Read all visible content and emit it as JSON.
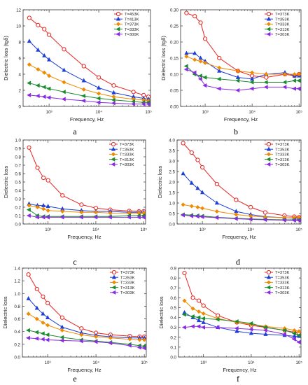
{
  "chart_data": [
    {
      "type": "line",
      "panel_label": "a",
      "xlabel": "Frequency, Hz",
      "ylabel": "Dielectric loss (tgδ)",
      "x_scale": "log",
      "xlim": [
        300,
        110000
      ],
      "ylim": [
        0,
        12
      ],
      "yticks": [
        0,
        2,
        4,
        6,
        8,
        10,
        12
      ],
      "ytick_labels": [
        "0",
        "2",
        "4",
        "6",
        "8",
        "10",
        "12"
      ],
      "xticks": [
        1000,
        10000,
        100000
      ],
      "xtick_labels": [
        "10³",
        "10⁴",
        "10⁵"
      ],
      "legend_position": "top-right",
      "x": [
        400,
        600,
        800,
        1000,
        2000,
        5000,
        10000,
        20000,
        50000,
        80000,
        100000
      ],
      "series": [
        {
          "name": "T=453K",
          "color": "#e8231f",
          "marker": "circle",
          "values": [
            11.0,
            10.1,
            9.6,
            8.9,
            7.1,
            5.0,
            3.6,
            2.6,
            1.8,
            1.4,
            1.2
          ]
        },
        {
          "name": "T=413K",
          "color": "#1f3fd6",
          "marker": "triangle",
          "values": [
            8.1,
            7.0,
            6.3,
            5.8,
            4.5,
            3.2,
            2.3,
            1.7,
            1.2,
            1.0,
            0.9
          ]
        },
        {
          "name": "T=373K",
          "color": "#f08a00",
          "marker": "diamond",
          "values": [
            5.2,
            4.6,
            4.2,
            3.8,
            3.0,
            2.1,
            1.6,
            1.2,
            0.9,
            0.8,
            0.7
          ]
        },
        {
          "name": "T=333K",
          "color": "#1a8c2e",
          "marker": "triangle-left",
          "values": [
            2.9,
            2.6,
            2.4,
            2.2,
            1.8,
            1.3,
            1.0,
            0.8,
            0.6,
            0.5,
            0.5
          ]
        },
        {
          "name": "T=300K",
          "color": "#8a2be2",
          "marker": "triangle-left",
          "values": [
            1.4,
            1.3,
            1.2,
            1.1,
            0.9,
            0.7,
            0.5,
            0.4,
            0.3,
            0.3,
            0.3
          ]
        }
      ]
    },
    {
      "type": "line",
      "panel_label": "b",
      "xlabel": "Frequency, Hz",
      "ylabel": "Dielectric loss (tgδ)",
      "x_scale": "log",
      "xlim": [
        300,
        110000
      ],
      "ylim": [
        0.0,
        0.3
      ],
      "yticks": [
        0.0,
        0.05,
        0.1,
        0.15,
        0.2,
        0.25,
        0.3
      ],
      "ytick_labels": [
        "0.00",
        "0.05",
        "0.10",
        "0.15",
        "0.20",
        "0.25",
        "0.30"
      ],
      "xticks": [
        1000,
        10000,
        100000
      ],
      "xtick_labels": [
        "10³",
        "10⁴",
        "10⁵"
      ],
      "legend_position": "top-right",
      "x": [
        400,
        600,
        800,
        1000,
        2000,
        5000,
        10000,
        20000,
        50000,
        80000,
        100000
      ],
      "series": [
        {
          "name": "T=373K",
          "color": "#e8231f",
          "marker": "circle",
          "values": [
            0.29,
            0.28,
            0.26,
            0.21,
            0.15,
            0.11,
            0.095,
            0.09,
            0.1,
            0.095,
            0.1
          ]
        },
        {
          "name": "T=353K",
          "color": "#1f3fd6",
          "marker": "triangle",
          "values": [
            0.165,
            0.165,
            0.15,
            0.14,
            0.11,
            0.09,
            0.085,
            0.1,
            0.105,
            0.095,
            0.095
          ]
        },
        {
          "name": "T=333K",
          "color": "#f08a00",
          "marker": "diamond",
          "values": [
            0.155,
            0.145,
            0.14,
            0.135,
            0.12,
            0.11,
            0.105,
            0.1,
            0.1,
            0.1,
            0.1
          ]
        },
        {
          "name": "T=313K",
          "color": "#1a8c2e",
          "marker": "triangle-left",
          "values": [
            0.125,
            0.1,
            0.095,
            0.09,
            0.085,
            0.08,
            0.075,
            0.075,
            0.075,
            0.08,
            0.08
          ]
        },
        {
          "name": "T=303K",
          "color": "#8a2be2",
          "marker": "triangle-left",
          "values": [
            0.115,
            0.105,
            0.085,
            0.065,
            0.055,
            0.05,
            0.055,
            0.06,
            0.06,
            0.055,
            0.055
          ]
        }
      ]
    },
    {
      "type": "line",
      "panel_label": "c",
      "xlabel": "Frequency, Hz",
      "ylabel": "Dielectric loss",
      "x_scale": "log",
      "xlim": [
        300,
        110000
      ],
      "ylim": [
        0.0,
        1.0
      ],
      "yticks": [
        0.0,
        0.1,
        0.2,
        0.3,
        0.4,
        0.5,
        0.6,
        0.7,
        0.8,
        0.9,
        1.0
      ],
      "ytick_labels": [
        "0.0",
        "0.1",
        "0.2",
        "0.3",
        "0.4",
        "0.5",
        "0.6",
        "0.7",
        "0.8",
        "0.9",
        "1.0"
      ],
      "xticks": [
        1000,
        10000,
        100000
      ],
      "xtick_labels": [
        "10³",
        "10⁴",
        "10⁵"
      ],
      "legend_position": "top-right",
      "x": [
        400,
        600,
        800,
        1000,
        2000,
        5000,
        10000,
        20000,
        50000,
        80000,
        100000
      ],
      "series": [
        {
          "name": "T=373K",
          "color": "#e8231f",
          "marker": "circle",
          "values": [
            0.91,
            0.67,
            0.55,
            0.52,
            0.34,
            0.23,
            0.19,
            0.17,
            0.155,
            0.15,
            0.15
          ]
        },
        {
          "name": "T=353K",
          "color": "#1f3fd6",
          "marker": "triangle",
          "values": [
            0.24,
            0.22,
            0.22,
            0.21,
            0.18,
            0.16,
            0.15,
            0.15,
            0.14,
            0.14,
            0.14
          ]
        },
        {
          "name": "T=333K",
          "color": "#f08a00",
          "marker": "diamond",
          "values": [
            0.22,
            0.2,
            0.18,
            0.16,
            0.15,
            0.14,
            0.14,
            0.13,
            0.13,
            0.13,
            0.13
          ]
        },
        {
          "name": "T=313K",
          "color": "#1a8c2e",
          "marker": "triangle-left",
          "values": [
            0.17,
            0.1,
            0.09,
            0.09,
            0.09,
            0.09,
            0.09,
            0.09,
            0.1,
            0.1,
            0.1
          ]
        },
        {
          "name": "T=303K",
          "color": "#8a2be2",
          "marker": "triangle-left",
          "values": [
            0.1,
            0.08,
            0.08,
            0.08,
            0.08,
            0.08,
            0.08,
            0.08,
            0.08,
            0.08,
            0.08
          ]
        }
      ]
    },
    {
      "type": "line",
      "panel_label": "d",
      "xlabel": "Frequency, Hz",
      "ylabel": "Dielectric loss",
      "x_scale": "log",
      "xlim": [
        300,
        110000
      ],
      "ylim": [
        0.0,
        4.0
      ],
      "yticks": [
        0.0,
        0.5,
        1.0,
        1.5,
        2.0,
        2.5,
        3.0,
        3.5,
        4.0
      ],
      "ytick_labels": [
        "0.0",
        "0.5",
        "1.0",
        "1.5",
        "2.0",
        "2.5",
        "3.0",
        "3.5",
        "4.0"
      ],
      "xticks": [
        1000,
        10000,
        100000
      ],
      "xtick_labels": [
        "10³",
        "10⁴",
        "10⁵"
      ],
      "legend_position": "top-right",
      "x": [
        400,
        600,
        800,
        1000,
        2000,
        5000,
        10000,
        20000,
        50000,
        80000,
        100000
      ],
      "series": [
        {
          "name": "T=373K",
          "color": "#e8231f",
          "marker": "circle",
          "values": [
            3.85,
            3.4,
            3.05,
            2.7,
            1.9,
            1.15,
            0.8,
            0.55,
            0.4,
            0.35,
            0.32
          ]
        },
        {
          "name": "T=353K",
          "color": "#1f3fd6",
          "marker": "triangle",
          "values": [
            2.4,
            1.95,
            1.7,
            1.5,
            1.0,
            0.6,
            0.45,
            0.35,
            0.3,
            0.28,
            0.27
          ]
        },
        {
          "name": "T=333K",
          "color": "#f08a00",
          "marker": "diamond",
          "values": [
            0.92,
            0.85,
            0.8,
            0.75,
            0.6,
            0.45,
            0.38,
            0.33,
            0.3,
            0.3,
            0.3
          ]
        },
        {
          "name": "T=313K",
          "color": "#1a8c2e",
          "marker": "triangle-left",
          "values": [
            0.45,
            0.42,
            0.4,
            0.38,
            0.32,
            0.27,
            0.24,
            0.22,
            0.2,
            0.2,
            0.2
          ]
        },
        {
          "name": "T=303K",
          "color": "#8a2be2",
          "marker": "triangle-left",
          "values": [
            0.42,
            0.38,
            0.36,
            0.34,
            0.3,
            0.25,
            0.22,
            0.2,
            0.18,
            0.17,
            0.17
          ]
        }
      ]
    },
    {
      "type": "line",
      "panel_label": "e",
      "xlabel": "Frequency, Hz",
      "ylabel": "Dielectric loss",
      "x_scale": "log",
      "xlim": [
        300,
        110000
      ],
      "ylim": [
        0.0,
        1.4
      ],
      "yticks": [
        0.0,
        0.2,
        0.4,
        0.6,
        0.8,
        1.0,
        1.2,
        1.4
      ],
      "ytick_labels": [
        "0.0",
        "0.2",
        "0.4",
        "0.6",
        "0.8",
        "1.0",
        "1.2",
        "1.4"
      ],
      "xticks": [
        1000,
        10000,
        100000
      ],
      "xtick_labels": [
        "10³",
        "10⁴",
        "10⁵"
      ],
      "legend_position": "top-right",
      "x": [
        400,
        600,
        800,
        1000,
        2000,
        5000,
        10000,
        20000,
        50000,
        80000,
        100000
      ],
      "series": [
        {
          "name": "T=373K",
          "color": "#e8231f",
          "marker": "circle",
          "values": [
            1.3,
            1.07,
            0.95,
            0.85,
            0.62,
            0.45,
            0.38,
            0.35,
            0.33,
            0.32,
            0.32
          ]
        },
        {
          "name": "T=353K",
          "color": "#1f3fd6",
          "marker": "triangle",
          "values": [
            0.92,
            0.77,
            0.68,
            0.62,
            0.47,
            0.38,
            0.34,
            0.32,
            0.3,
            0.3,
            0.3
          ]
        },
        {
          "name": "T=333K",
          "color": "#f08a00",
          "marker": "diamond",
          "values": [
            0.68,
            0.6,
            0.54,
            0.5,
            0.42,
            0.35,
            0.32,
            0.3,
            0.28,
            0.27,
            0.27
          ]
        },
        {
          "name": "T=313K",
          "color": "#1a8c2e",
          "marker": "triangle-left",
          "values": [
            0.42,
            0.39,
            0.37,
            0.35,
            0.31,
            0.27,
            0.25,
            0.23,
            0.2,
            0.18,
            0.17
          ]
        },
        {
          "name": "T=303K",
          "color": "#8a2be2",
          "marker": "triangle-left",
          "values": [
            0.3,
            0.29,
            0.28,
            0.27,
            0.26,
            0.25,
            0.24,
            0.22,
            0.18,
            0.15,
            0.14
          ]
        }
      ]
    },
    {
      "type": "line",
      "panel_label": "f",
      "xlabel": "Frequency, Hz",
      "ylabel": "Dielectric loss",
      "x_scale": "log",
      "xlim": [
        300,
        110000
      ],
      "ylim": [
        0.0,
        0.9
      ],
      "yticks": [
        0.0,
        0.1,
        0.2,
        0.3,
        0.4,
        0.5,
        0.6,
        0.7,
        0.8,
        0.9
      ],
      "ytick_labels": [
        "0.0",
        "0.1",
        "0.2",
        "0.3",
        "0.4",
        "0.5",
        "0.6",
        "0.7",
        "0.8",
        "0.9"
      ],
      "xticks": [
        1000,
        10000,
        100000
      ],
      "xtick_labels": [
        "10³",
        "10⁴",
        "10⁵"
      ],
      "legend_position": "top-right",
      "x": [
        400,
        600,
        800,
        1000,
        2000,
        5000,
        10000,
        20000,
        50000,
        80000,
        100000
      ],
      "series": [
        {
          "name": "T=373K",
          "color": "#e8231f",
          "marker": "circle",
          "values": [
            0.85,
            0.6,
            0.57,
            0.52,
            0.42,
            0.35,
            0.32,
            0.3,
            0.27,
            0.25,
            0.24
          ]
        },
        {
          "name": "T=353K",
          "color": "#1f3fd6",
          "marker": "triangle",
          "values": [
            0.45,
            0.4,
            0.37,
            0.35,
            0.3,
            0.26,
            0.24,
            0.23,
            0.22,
            0.21,
            0.21
          ]
        },
        {
          "name": "T=333K",
          "color": "#f08a00",
          "marker": "diamond",
          "values": [
            0.57,
            0.49,
            0.46,
            0.44,
            0.39,
            0.35,
            0.33,
            0.31,
            0.29,
            0.27,
            0.26
          ]
        },
        {
          "name": "T=313K",
          "color": "#1a8c2e",
          "marker": "triangle-left",
          "values": [
            0.43,
            0.41,
            0.4,
            0.39,
            0.38,
            0.36,
            0.34,
            0.3,
            0.27,
            0.24,
            0.22
          ]
        },
        {
          "name": "T=303K",
          "color": "#8a2be2",
          "marker": "triangle-left",
          "values": [
            0.3,
            0.31,
            0.31,
            0.3,
            0.3,
            0.29,
            0.28,
            0.27,
            0.23,
            0.18,
            0.15
          ]
        }
      ]
    }
  ]
}
